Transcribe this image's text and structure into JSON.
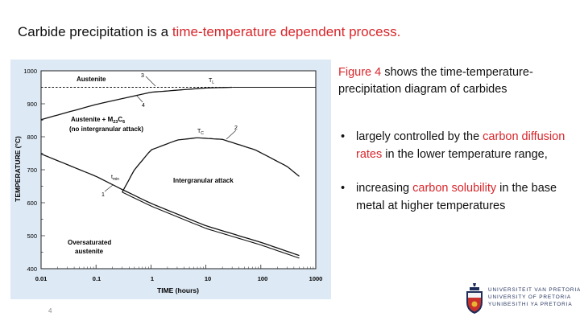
{
  "title": {
    "prefix": "Carbide precipitation is a ",
    "highlight": "time-temperature dependent process."
  },
  "figure": {
    "xlabel": "TIME (hours)",
    "ylabel": "TEMPERATURE (°C)",
    "x_ticks": [
      "0.01",
      "0.1",
      "1",
      "10",
      "100",
      "1000"
    ],
    "y_ticks": [
      "400",
      "500",
      "600",
      "700",
      "800",
      "900",
      "1000"
    ],
    "labels": {
      "austenite": "Austenite",
      "austenite_carbide_a": "Austenite + M",
      "austenite_carbide_sub1": "23",
      "austenite_carbide_c": "C",
      "austenite_carbide_sub2": "6",
      "no_attack": "(no intergranular attack)",
      "intergranular": "Intergranular attack",
      "oversaturated_1": "Oversaturated",
      "oversaturated_2": "austenite",
      "tl_main": "T",
      "tl_sub": "L",
      "tc_main": "T",
      "tc_sub": "C",
      "tmin_main": "t",
      "tmin_sub": "min",
      "curve1": "1",
      "curve2": "2",
      "curve3": "3",
      "curve4": "4"
    }
  },
  "chart_data": {
    "type": "line",
    "xlabel": "TIME (hours)",
    "ylabel": "TEMPERATURE (°C)",
    "xscale": "log",
    "xlim": [
      0.01,
      1000
    ],
    "ylim": [
      400,
      1000
    ],
    "series": [
      {
        "name": "1",
        "x": [
          0.01,
          0.1,
          0.3,
          1,
          10,
          100,
          500
        ],
        "y": [
          748,
          680,
          640,
          598,
          530,
          480,
          440
        ]
      },
      {
        "name": "2",
        "x": [
          0.3,
          0.5,
          1,
          3,
          7,
          20,
          80,
          300,
          500
        ],
        "y": [
          632,
          700,
          760,
          790,
          797,
          792,
          760,
          710,
          680
        ]
      },
      {
        "name": "3",
        "x": [
          0.01,
          1000
        ],
        "y": [
          950,
          950
        ]
      },
      {
        "name": "4",
        "x": [
          0.01,
          0.1,
          1,
          10,
          30
        ],
        "y": [
          852,
          898,
          935,
          948,
          950
        ]
      }
    ]
  },
  "caption": {
    "highlight": "Figure 4",
    "rest": " shows the time-temperature-precipitation diagram of carbides"
  },
  "bullets": [
    {
      "pre": "largely controlled by the ",
      "hl": "carbon diffusion rates",
      "post": " in the lower temperature range,"
    },
    {
      "pre": "increasing ",
      "hl": "carbon solubility",
      "post": " in the base metal at higher temperatures"
    }
  ],
  "bullet_symbol": "•",
  "page_number": "4",
  "logo": {
    "line1": "UNIVERSITEIT VAN PRETORIA",
    "line2": "UNIVERSITY OF PRETORIA",
    "line3": "YUNIBESITHI YA PRETORIA",
    "icon": "crest-icon"
  },
  "colors": {
    "accent": "#d9262b",
    "panel": "#dde9f5",
    "logo_blue": "#1e2d5a"
  }
}
